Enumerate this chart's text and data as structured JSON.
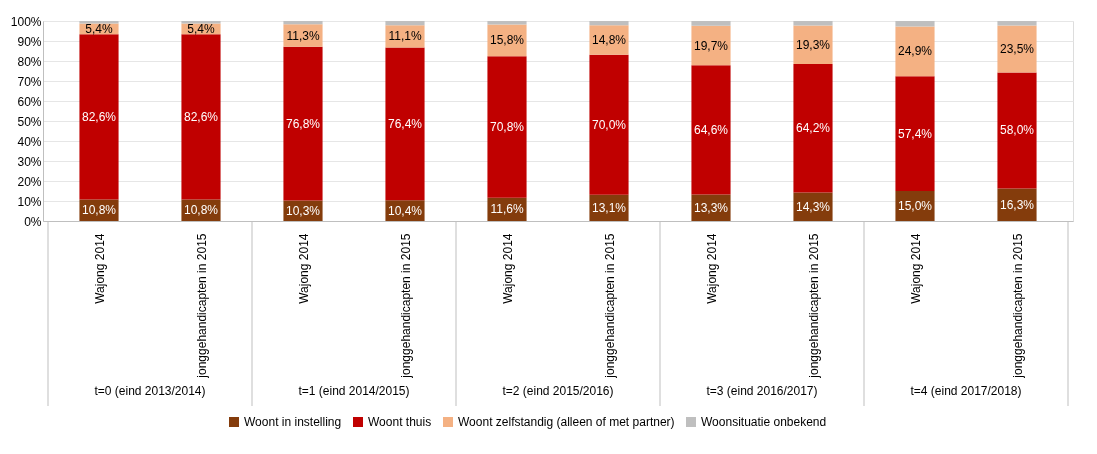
{
  "chart_data": {
    "type": "bar",
    "stacked": true,
    "categories": [
      "Wajong 2014",
      "jonggehandicapten in 2015",
      "Wajong 2014",
      "jonggehandicapten in 2015",
      "Wajong 2014",
      "jonggehandicapten in 2015",
      "Wajong 2014",
      "jonggehandicapten in 2015",
      "Wajong 2014",
      "jonggehandicapten in 2015"
    ],
    "annotations": [
      "t=0 (eind 2013/2014)",
      "t=1 (eind 2014/2015)",
      "t=2 (eind 2015/2016)",
      "t=3 (eind 2016/2017)",
      "t=4 (eind 2017/2018)"
    ],
    "series": [
      {
        "name": "Woont in instelling",
        "color": "#843c0c",
        "values": [
          10.8,
          10.8,
          10.3,
          10.4,
          11.6,
          13.1,
          13.3,
          14.3,
          15.0,
          16.3
        ],
        "value_labels": [
          "10,8%",
          "10,8%",
          "10,3%",
          "10,4%",
          "11,6%",
          "13,1%",
          "13,3%",
          "14,3%",
          "15,0%",
          "16,3%"
        ]
      },
      {
        "name": "Woont thuis",
        "color": "#c00000",
        "values": [
          82.6,
          82.6,
          76.8,
          76.4,
          70.8,
          70.0,
          64.6,
          64.2,
          57.4,
          58.0
        ],
        "value_labels": [
          "82,6%",
          "82,6%",
          "76,8%",
          "76,4%",
          "70,8%",
          "70,0%",
          "64,6%",
          "64,2%",
          "57,4%",
          "58,0%"
        ]
      },
      {
        "name": "Woont zelfstandig (alleen of met partner)",
        "color": "#f4b183",
        "values": [
          5.4,
          5.4,
          11.3,
          11.1,
          15.8,
          14.8,
          19.7,
          19.3,
          24.9,
          23.5
        ],
        "value_labels": [
          "5,4%",
          "5,4%",
          "11,3%",
          "11,1%",
          "15,8%",
          "14,8%",
          "19,7%",
          "19,3%",
          "24,9%",
          "23,5%"
        ]
      },
      {
        "name": "Woonsituatie onbekend",
        "color": "#bfbfbf",
        "values": [
          1.2,
          1.2,
          1.6,
          2.1,
          1.8,
          2.1,
          2.4,
          2.2,
          2.7,
          2.2
        ]
      }
    ],
    "ylim": [
      0,
      100
    ],
    "yticks": [
      {
        "value": 0,
        "label": "0%"
      },
      {
        "value": 10,
        "label": "10%"
      },
      {
        "value": 20,
        "label": "20%"
      },
      {
        "value": 30,
        "label": "30%"
      },
      {
        "value": 40,
        "label": "40%"
      },
      {
        "value": 50,
        "label": "50%"
      },
      {
        "value": 60,
        "label": "60%"
      },
      {
        "value": 70,
        "label": "70%"
      },
      {
        "value": 80,
        "label": "80%"
      },
      {
        "value": 90,
        "label": "90%"
      },
      {
        "value": 100,
        "label": "100%"
      }
    ],
    "grid": "y",
    "legend": "bottom"
  }
}
